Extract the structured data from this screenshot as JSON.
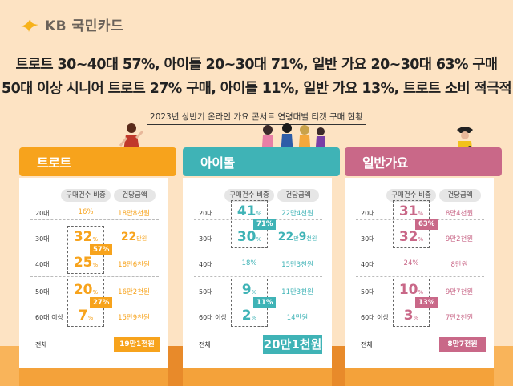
{
  "brand": {
    "name": "KB 국민카드"
  },
  "headline": {
    "line1": "트로트 30~40대 57%, 아이돌 20~30대 71%, 일반 가요 20~30대 63% 구매",
    "line2": "50대 이상 시니어 트로트 27% 구매, 아이돌 11%, 일반 가요 13%, 트로트 소비 적극적"
  },
  "subtitle": "2023년 상반기 온라인 가요 콘서트 연령대별 티켓 구매 현황",
  "columns": {
    "share": "구매건수 비중",
    "price": "건당금액"
  },
  "rows": [
    "20대",
    "30대",
    "40대",
    "50대",
    "60대 이상"
  ],
  "total_label": "전체",
  "colors": {
    "trot": "#f7a31c",
    "idol": "#3fb3b6",
    "pop": "#c96888"
  },
  "chart_data": {
    "type": "table",
    "categories": [
      "20대",
      "30대",
      "40대",
      "50대",
      "60대 이상"
    ],
    "series": [
      {
        "name": "트로트",
        "share": [
          "16%",
          "32%",
          "25%",
          "20%",
          "7%"
        ],
        "price": [
          "18만8천원",
          "22만원",
          "18만6천원",
          "16만2천원",
          "15만9천원"
        ],
        "combined": [
          "57%",
          "27%"
        ],
        "total": "19만1천원"
      },
      {
        "name": "아이돌",
        "share": [
          "41%",
          "30%",
          "18%",
          "9%",
          "2%"
        ],
        "price": [
          "22만4천원",
          "22만9천원",
          "15만3천원",
          "11만3천원",
          "14만원"
        ],
        "combined": [
          "71%",
          "11%"
        ],
        "total": "20만1천원"
      },
      {
        "name": "일반가요",
        "share": [
          "31%",
          "32%",
          "24%",
          "10%",
          "3%"
        ],
        "price": [
          "8만4천원",
          "9만2천원",
          "8만원",
          "9만7천원",
          "7만2천원"
        ],
        "combined": [
          "63%",
          "13%"
        ],
        "total": "8만7천원"
      }
    ]
  },
  "icons": [
    "kb-star-icon",
    "trot-singer-illustration",
    "idol-group-illustration",
    "pop-singer-illustration"
  ]
}
